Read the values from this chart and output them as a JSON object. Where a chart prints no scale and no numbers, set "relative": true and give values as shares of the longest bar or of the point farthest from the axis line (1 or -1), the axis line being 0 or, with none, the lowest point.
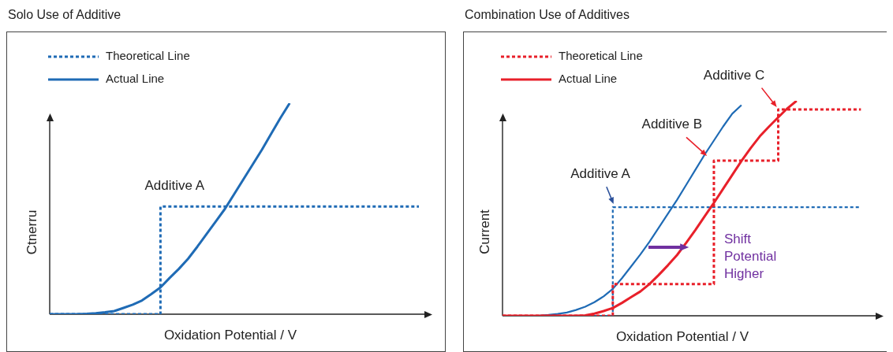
{
  "chart_data": [
    {
      "type": "line",
      "title": "Solo Use of Additive",
      "xlabel": "Oxidation Potential / V",
      "ylabel": "Ctnerru",
      "relative": true,
      "tick_labels": false,
      "legend": "top left",
      "marker": "none",
      "categories": [
        null,
        null,
        null,
        null,
        null,
        null,
        null,
        null,
        null,
        null,
        null,
        null,
        null,
        null,
        null,
        null,
        null,
        null,
        null,
        null,
        null,
        null,
        null,
        null,
        null,
        null,
        null,
        null,
        null,
        null,
        null,
        null,
        null,
        null,
        null,
        null,
        null,
        null,
        null,
        null,
        null
      ],
      "series": [
        {
          "name": "Theoretical Line",
          "type": "step",
          "color": "#1f6bb5",
          "line_style": "dotted",
          "values": [
            0,
            0,
            0,
            0,
            0,
            0,
            0,
            0,
            0,
            0,
            0,
            0,
            0.51,
            0.51,
            0.51,
            0.51,
            0.51,
            0.51,
            0.51,
            0.51,
            0.51,
            0.51,
            0.51,
            0.51,
            0.51,
            0.51,
            0.51,
            0.51,
            0.51,
            0.51,
            0.51,
            0.51,
            0.51,
            0.51,
            0.51,
            0.51,
            0.51,
            0.51,
            0.51,
            0.51,
            0.51
          ]
        },
        {
          "name": "Actual Line",
          "type": "line",
          "color": "#1f6bb5",
          "line_style": "solid",
          "values": [
            0,
            0,
            0,
            0,
            0.002,
            0.005,
            0.009,
            0.015,
            0.03,
            0.045,
            0.065,
            0.095,
            0.127,
            0.172,
            0.215,
            0.263,
            0.32,
            0.38,
            0.44,
            0.5,
            0.57,
            0.64,
            0.71,
            0.78,
            0.855,
            0.93,
            1,
            null,
            null,
            null,
            null,
            null,
            null,
            null,
            null,
            null,
            null,
            null,
            null,
            null,
            null
          ]
        }
      ],
      "annotations": [
        "Additive A"
      ]
    },
    {
      "type": "line",
      "title": "Combination Use of Additives",
      "xlabel": "Oxidation Potential / V",
      "ylabel": "Current",
      "relative": true,
      "tick_labels": false,
      "legend": "top left",
      "marker": "none",
      "categories": [
        null,
        null,
        null,
        null,
        null,
        null,
        null,
        null,
        null,
        null,
        null,
        null,
        null,
        null,
        null,
        null,
        null,
        null,
        null,
        null,
        null,
        null,
        null,
        null,
        null,
        null,
        null,
        null,
        null,
        null,
        null,
        null,
        null,
        null,
        null,
        null,
        null,
        null,
        null,
        null,
        null
      ],
      "series": [
        {
          "name": "Theoretical Line",
          "type": "step",
          "color": "#e8202a",
          "line_style": "dotted",
          "values": [
            0,
            0,
            0,
            0,
            0,
            0,
            0,
            0,
            0,
            0,
            0,
            0,
            0.147,
            0.147,
            0.147,
            0.147,
            0.147,
            0.147,
            0.147,
            0.147,
            0.147,
            0.147,
            0.147,
            0.722,
            0.722,
            0.722,
            0.722,
            0.722,
            0.722,
            0.722,
            0.96,
            0.96,
            0.96,
            0.96,
            0.96,
            0.96,
            0.96,
            0.96,
            0.96,
            0.96,
            null
          ]
        },
        {
          "name": "Actual Line",
          "type": "line",
          "color": "#e8202a",
          "line_style": "solid",
          "values": [
            0,
            0,
            0,
            0,
            0,
            0,
            0,
            0,
            0,
            0.002,
            0.01,
            0.022,
            0.036,
            0.06,
            0.087,
            0.113,
            0.148,
            0.19,
            0.235,
            0.283,
            0.34,
            0.4,
            0.463,
            0.525,
            0.59,
            0.655,
            0.72,
            0.78,
            0.835,
            0.88,
            0.923,
            0.965,
            1,
            null,
            null,
            null,
            null,
            null,
            null,
            null,
            null
          ]
        },
        {
          "type": "step",
          "color": "#1f6bb5",
          "line_style": "dotted",
          "values": [
            null,
            null,
            null,
            null,
            0,
            0,
            0,
            0,
            0,
            0,
            0,
            0,
            0.505,
            0.505,
            0.505,
            0.505,
            0.505,
            0.505,
            0.505,
            0.505,
            0.505,
            0.505,
            0.505,
            0.505,
            0.505,
            0.505,
            0.505,
            0.505,
            0.505,
            0.505,
            0.505,
            0.505,
            0.505,
            0.505,
            0.505,
            0.505,
            0.505,
            0.505,
            0.505,
            0.505,
            null
          ]
        },
        {
          "type": "line",
          "color": "#1f6bb5",
          "line_style": "solid",
          "values": [
            null,
            null,
            null,
            null,
            0.001,
            0.004,
            0.009,
            0.015,
            0.027,
            0.042,
            0.063,
            0.09,
            0.125,
            0.175,
            0.23,
            0.285,
            0.345,
            0.41,
            0.475,
            0.54,
            0.61,
            0.68,
            0.75,
            0.815,
            0.88,
            0.94,
            0.98,
            null,
            null,
            null,
            null,
            null,
            null,
            null,
            null,
            null,
            null,
            null,
            null,
            null,
            null
          ]
        }
      ],
      "annotations": [
        "Additive A",
        "Additive B",
        "Additive C",
        "Shift Potential Higher"
      ]
    }
  ]
}
